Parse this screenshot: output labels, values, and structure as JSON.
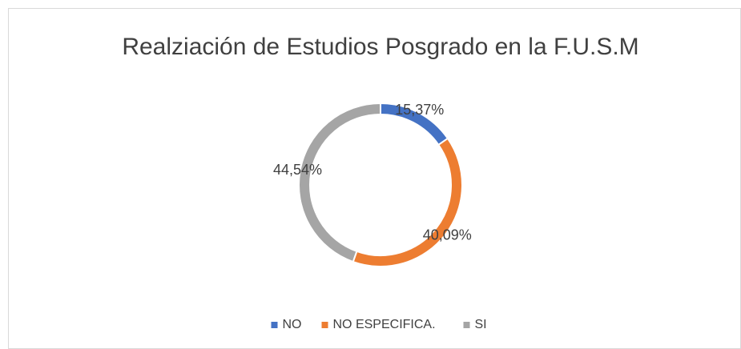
{
  "chart_data": {
    "type": "donut",
    "title": "Realziación de Estudios Posgrado en la F.U.S.M",
    "categories": [
      "NO",
      "NO ESPECIFICA.",
      "SI"
    ],
    "values": [
      15.37,
      40.09,
      44.54
    ],
    "value_labels": [
      "15,37%",
      "40,09%",
      "44,54%"
    ],
    "colors": [
      "#4472c4",
      "#ed7d31",
      "#a5a5a5"
    ],
    "legend": "bottom"
  }
}
